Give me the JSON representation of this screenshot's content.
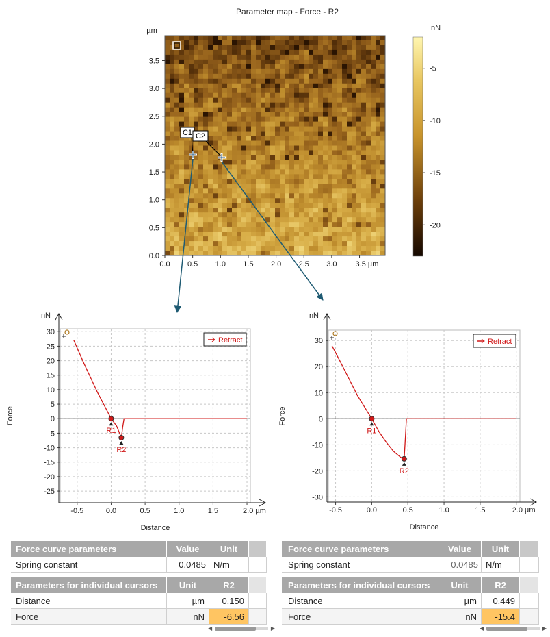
{
  "map": {
    "title": "Parameter map - Force - R2",
    "y_unit": "µm",
    "x_ticks": [
      "0.0",
      "0.5",
      "1.0",
      "1.5",
      "2.0",
      "2.5",
      "3.0",
      "3.5 µm"
    ],
    "y_ticks": [
      "0.0",
      "0.5",
      "1.0",
      "1.5",
      "2.0",
      "2.5",
      "3.0",
      "3.5"
    ],
    "colorbar_unit": "nN",
    "colorbar_ticks": [
      "-5",
      "-10",
      "-15",
      "-20"
    ],
    "cursor1_label": "C1",
    "cursor2_label": "C2",
    "colors": {
      "high": "#fff2a0",
      "mid": "#c8942c",
      "low": "#2a1402"
    }
  },
  "plots": [
    {
      "y_unit": "nN",
      "y_axis_label": "Force",
      "x_axis_label": "Distance",
      "legend": "Retract",
      "x_ticks": [
        "-0.5",
        "0.0",
        "0.5",
        "1.0",
        "1.5",
        "2.0 µm"
      ],
      "y_ticks": [
        "30",
        "25",
        "20",
        "15",
        "10",
        "5",
        "0",
        "-5",
        "-10",
        "-15",
        "-20",
        "-25"
      ],
      "marker1": "R1",
      "marker2": "R2"
    },
    {
      "y_unit": "nN",
      "y_axis_label": "Force",
      "x_axis_label": "Distance",
      "legend": "Retract",
      "x_ticks": [
        "-0.5",
        "0.0",
        "0.5",
        "1.0",
        "1.5",
        "2.0 µm"
      ],
      "y_ticks": [
        "30",
        "20",
        "10",
        "0",
        "-10",
        "-20",
        "-30"
      ],
      "marker1": "R1",
      "marker2": "R2"
    }
  ],
  "chart_data": [
    {
      "type": "heatmap",
      "title": "Parameter map - Force - R2",
      "xlim": [
        0,
        3.9
      ],
      "ylim": [
        0,
        3.9
      ],
      "colorbar_range": [
        -23,
        -2
      ],
      "colorbar_label": "nN",
      "cursors": [
        {
          "name": "C1",
          "x": 0.5,
          "y": 1.85
        },
        {
          "name": "C2",
          "x": 1.05,
          "y": 1.8
        }
      ]
    },
    {
      "type": "line",
      "series": [
        {
          "name": "Retract",
          "x": [
            -0.55,
            -0.4,
            -0.2,
            0.0,
            0.08,
            0.15,
            0.17,
            0.19,
            0.5,
            1.0,
            1.5,
            2.0
          ],
          "y": [
            27,
            19,
            9,
            0,
            -2.5,
            -6.56,
            -3,
            0,
            0,
            0,
            0,
            0
          ]
        }
      ],
      "xlim": [
        -0.75,
        2.05
      ],
      "ylim": [
        -29,
        31
      ],
      "markers": [
        {
          "name": "R1",
          "x": 0.0,
          "y": 0.0
        },
        {
          "name": "R2",
          "x": 0.15,
          "y": -6.56
        }
      ]
    },
    {
      "type": "line",
      "series": [
        {
          "name": "Retract",
          "x": [
            -0.55,
            -0.4,
            -0.2,
            0.0,
            0.1,
            0.2,
            0.3,
            0.4,
            0.449,
            0.46,
            0.48,
            0.6,
            1.0,
            1.5,
            2.0
          ],
          "y": [
            28,
            20,
            9,
            0,
            -5,
            -9,
            -12.5,
            -14.8,
            -15.4,
            -10,
            0,
            0,
            0,
            0,
            0
          ]
        }
      ],
      "xlim": [
        -0.6,
        2.05
      ],
      "ylim": [
        -32,
        34
      ],
      "markers": [
        {
          "name": "R1",
          "x": 0.0,
          "y": 0.0
        },
        {
          "name": "R2",
          "x": 0.449,
          "y": -15.4
        }
      ]
    }
  ],
  "tables": [
    {
      "header1": [
        "Force curve parameters",
        "Value",
        "Unit"
      ],
      "row1": [
        "Spring constant",
        "0.0485",
        "N/m"
      ],
      "header2": [
        "Parameters for individual cursors",
        "Unit",
        "R2"
      ],
      "rows": [
        [
          "Distance",
          "µm",
          "0.150"
        ],
        [
          "Force",
          "nN",
          "-6.56"
        ]
      ]
    },
    {
      "header1": [
        "Force curve parameters",
        "Value",
        "Unit"
      ],
      "row1": [
        "Spring constant",
        "0.0485",
        "N/m"
      ],
      "header2": [
        "Parameters for individual cursors",
        "Unit",
        "R2"
      ],
      "rows": [
        [
          "Distance",
          "µm",
          "0.449"
        ],
        [
          "Force",
          "nN",
          "-15.4"
        ]
      ]
    }
  ]
}
